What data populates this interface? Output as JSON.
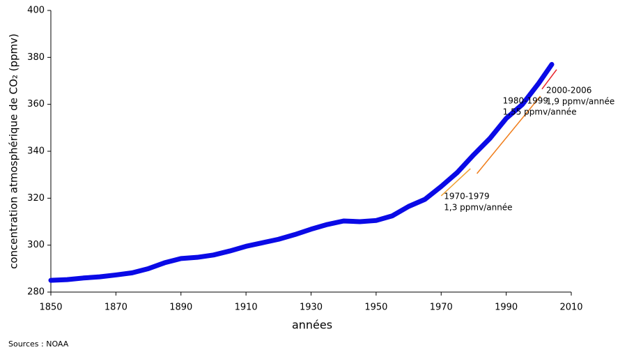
{
  "chart_data": {
    "type": "line",
    "x_label": "années",
    "y_label": "concentration atmosphérique de CO₂ (ppmv)",
    "source": "Sources : NOAA",
    "x": [
      1850,
      1855,
      1860,
      1865,
      1870,
      1875,
      1880,
      1885,
      1890,
      1895,
      1900,
      1905,
      1910,
      1915,
      1920,
      1925,
      1930,
      1935,
      1940,
      1945,
      1950,
      1955,
      1960,
      1965,
      1970,
      1975,
      1980,
      1985,
      1990,
      1995,
      2000,
      2004
    ],
    "series": [
      {
        "color": "#0a0ae6",
        "values": [
          285,
          285.3,
          286,
          286.5,
          287.3,
          288.2,
          290,
          292.5,
          294.3,
          294.8,
          295.8,
          297.5,
          299.5,
          301,
          302.5,
          304.5,
          306.8,
          308.8,
          310.3,
          310,
          310.5,
          312.5,
          316.5,
          319.5,
          325,
          331,
          338.5,
          345.5,
          354,
          360,
          369,
          377
        ]
      }
    ],
    "xlim": [
      1850,
      2010
    ],
    "xticks": [
      1850,
      1870,
      1890,
      1910,
      1930,
      1950,
      1970,
      1990,
      2010
    ],
    "ylim": [
      280,
      400
    ],
    "yticks": [
      280,
      300,
      320,
      340,
      360,
      380,
      400
    ],
    "trends": [
      {
        "period": "1970-1979",
        "rate": "1,3 ppmv/année",
        "color": "#f0a030",
        "x": [
          1970,
          1979
        ],
        "y": [
          321,
          332.6
        ]
      },
      {
        "period": "1980-1999",
        "rate": "1,55 ppmv/année",
        "color": "#f07d1a",
        "x": [
          1981,
          2000.5
        ],
        "y": [
          330.5,
          363.5
        ]
      },
      {
        "period": "2000-2006",
        "rate": "1,9 ppmv/année",
        "color": "#e8202a",
        "x": [
          2001,
          2005.5
        ],
        "y": [
          366.5,
          374.8
        ]
      }
    ]
  }
}
